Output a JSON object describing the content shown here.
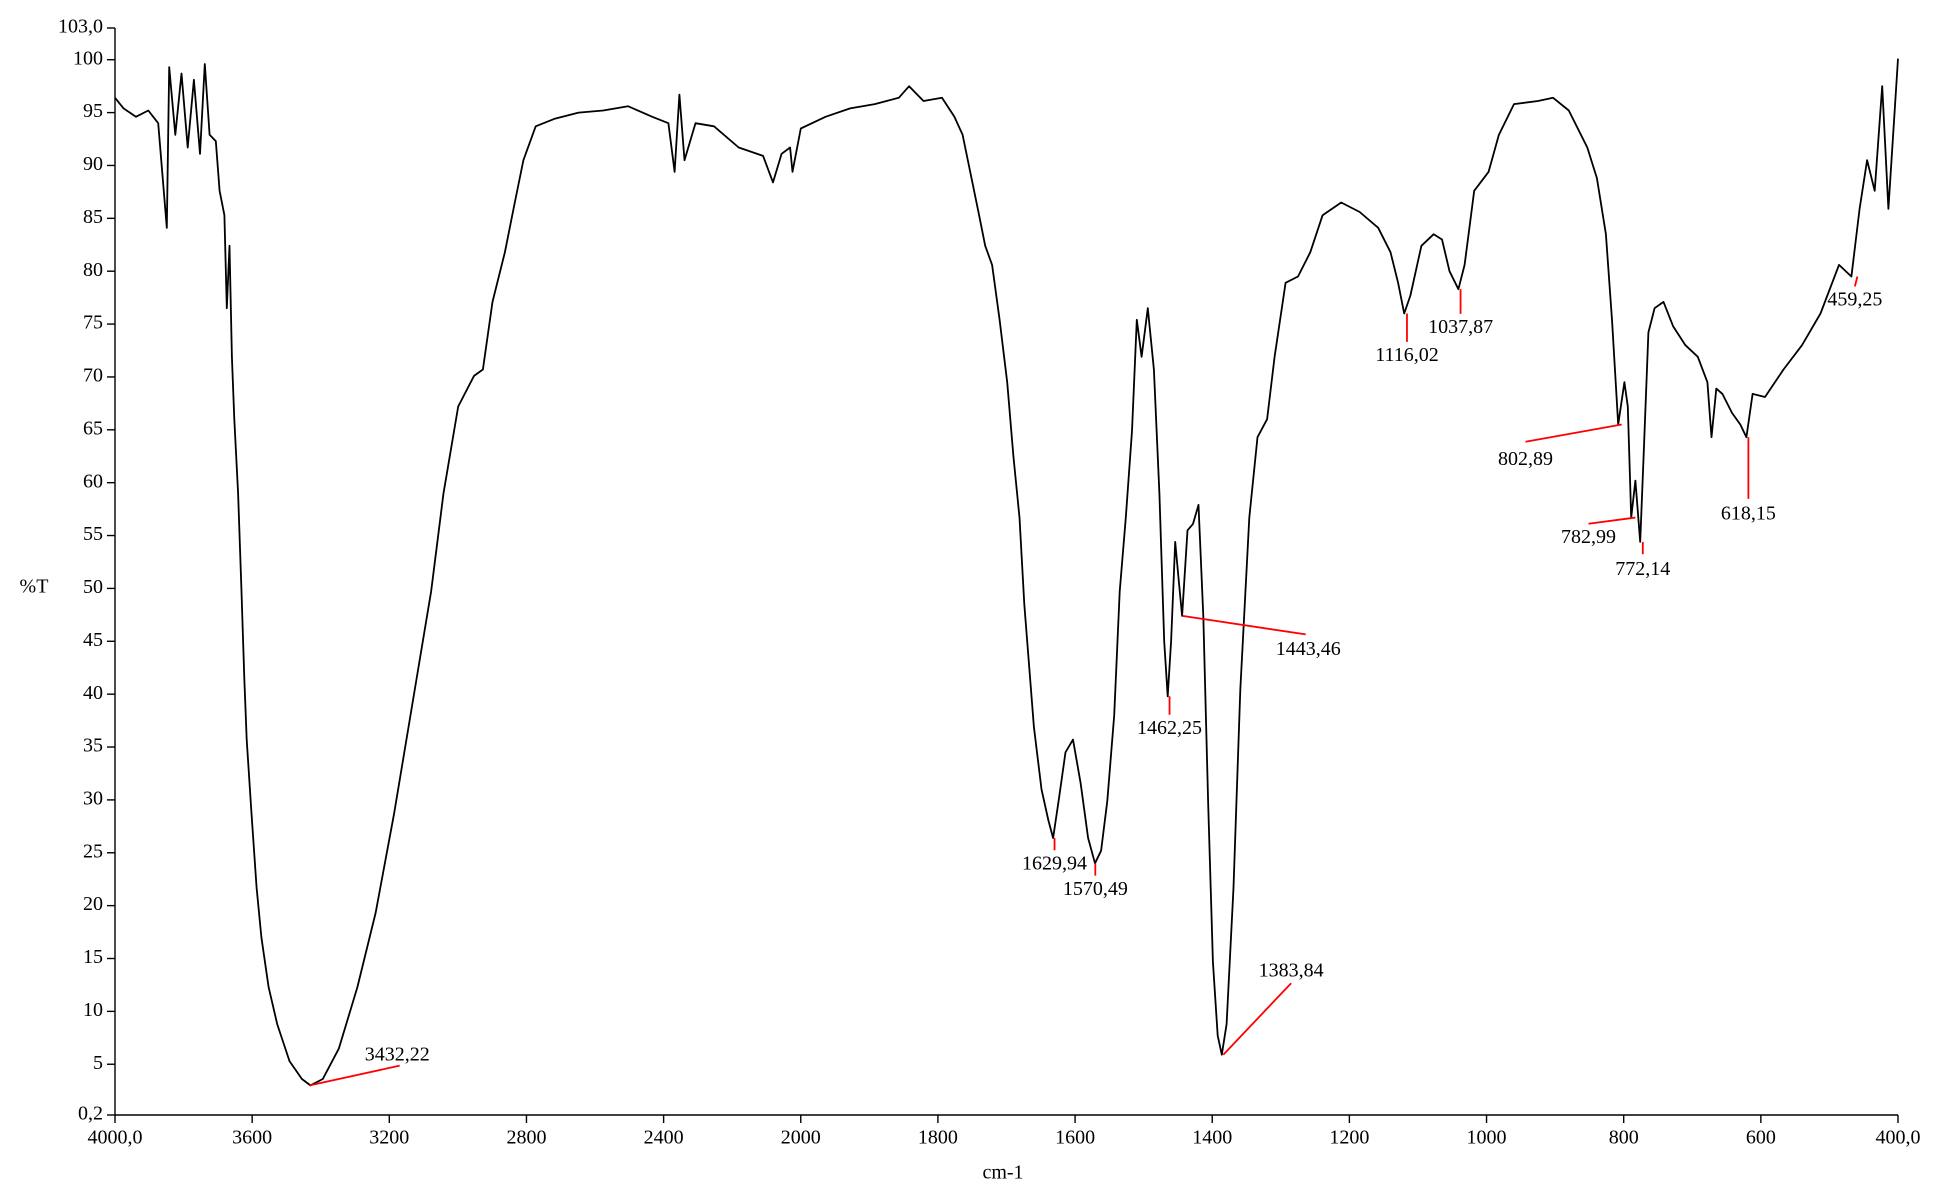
{
  "chart_data": {
    "type": "line",
    "xlabel": "cm-1",
    "ylabel": "%T",
    "color": "#000000",
    "annotation_color": "#ff0000",
    "xlim": [
      4000,
      400
    ],
    "ylim": [
      0.2,
      103
    ],
    "xticks": [
      {
        "value": 4000,
        "label": "4000,0"
      },
      3600,
      3200,
      2800,
      2400,
      2000,
      1800,
      1600,
      1400,
      1200,
      1000,
      800,
      600,
      {
        "value": 400,
        "label": "400,0"
      }
    ],
    "yticks": [
      {
        "value": 0.2,
        "label": "0,2"
      },
      5,
      10,
      15,
      20,
      25,
      30,
      35,
      40,
      45,
      50,
      55,
      60,
      65,
      70,
      75,
      80,
      85,
      90,
      95,
      100,
      {
        "value": 103,
        "label": "103,0"
      }
    ],
    "x": [
      4000,
      3975,
      3939,
      3903,
      3874,
      3849,
      3842,
      3824,
      3806,
      3788,
      3770,
      3752,
      3738,
      3724,
      3706,
      3695,
      3681,
      3674,
      3666,
      3659,
      3652,
      3641,
      3631,
      3623,
      3616,
      3602,
      3587,
      3573,
      3552,
      3527,
      3491,
      3455,
      3430,
      3394,
      3347,
      3293,
      3240,
      3186,
      3132,
      3078,
      3042,
      2999,
      2953,
      2927,
      2899,
      2863,
      2834,
      2809,
      2773,
      2719,
      2648,
      2576,
      2504,
      2433,
      2386,
      2368,
      2354,
      2339,
      2307,
      2253,
      2181,
      2110,
      2081,
      2056,
      2031,
      2024,
      2000,
      1964,
      1928,
      1892,
      1857,
      1842,
      1821,
      1794,
      1776,
      1764,
      1753,
      1740,
      1731,
      1721,
      1710,
      1699,
      1690,
      1681,
      1674,
      1667,
      1660,
      1649,
      1639,
      1632,
      1624,
      1614,
      1603,
      1592,
      1581,
      1571,
      1562,
      1553,
      1543,
      1535,
      1526,
      1517,
      1510,
      1503,
      1494,
      1485,
      1477,
      1470,
      1465,
      1460,
      1454,
      1449,
      1444,
      1436,
      1428,
      1420,
      1413,
      1406,
      1399,
      1392,
      1386,
      1379,
      1369,
      1359,
      1346,
      1334,
      1320,
      1309,
      1293,
      1275,
      1257,
      1239,
      1212,
      1185,
      1158,
      1140,
      1129,
      1120,
      1111,
      1095,
      1077,
      1065,
      1054,
      1041,
      1032,
      1018,
      997,
      982,
      960,
      925,
      903,
      880,
      853,
      839,
      826,
      817,
      808,
      799,
      794,
      789,
      783,
      776,
      771,
      764,
      755,
      742,
      728,
      710,
      692,
      678,
      672,
      665,
      656,
      642,
      630,
      621,
      612,
      594,
      567,
      540,
      513,
      486,
      468,
      456,
      445,
      434,
      423,
      414,
      400
    ],
    "values": [
      96.4,
      95.4,
      94.6,
      95.2,
      94.0,
      84.1,
      99.3,
      92.9,
      98.7,
      91.7,
      98.1,
      91.1,
      99.6,
      92.9,
      92.3,
      87.6,
      85.3,
      76.5,
      82.4,
      71.9,
      66.0,
      59.0,
      49.7,
      41.5,
      35.7,
      28.7,
      21.7,
      17.0,
      12.3,
      8.8,
      5.3,
      3.6,
      3.0,
      3.6,
      6.5,
      12.3,
      19.3,
      28.7,
      39.2,
      49.7,
      59.0,
      67.2,
      70.1,
      70.7,
      77.1,
      81.8,
      86.5,
      90.5,
      93.7,
      94.4,
      95.0,
      95.2,
      95.6,
      94.6,
      94.0,
      89.4,
      96.7,
      90.5,
      94.0,
      93.7,
      91.7,
      90.9,
      88.4,
      91.1,
      91.7,
      89.4,
      93.5,
      94.6,
      95.4,
      95.8,
      96.4,
      97.5,
      96.1,
      96.4,
      94.6,
      92.9,
      89.4,
      85.3,
      82.4,
      80.6,
      75.4,
      69.5,
      62.5,
      56.7,
      48.5,
      42.7,
      36.9,
      31.0,
      28.1,
      26.4,
      29.9,
      34.5,
      35.7,
      31.6,
      26.4,
      24.0,
      25.2,
      29.9,
      38.0,
      49.7,
      56.7,
      64.9,
      75.4,
      71.9,
      76.5,
      70.7,
      59.0,
      45.0,
      39.8,
      45.0,
      54.4,
      50.9,
      47.4,
      55.5,
      56.1,
      57.9,
      47.4,
      29.9,
      14.7,
      7.7,
      5.9,
      8.8,
      21.7,
      40.4,
      56.7,
      64.3,
      66.0,
      71.9,
      78.9,
      79.5,
      81.8,
      85.3,
      86.5,
      85.6,
      84.1,
      81.8,
      78.9,
      76.0,
      77.7,
      82.4,
      83.5,
      83.0,
      80.0,
      78.3,
      80.6,
      87.6,
      89.4,
      92.9,
      95.8,
      96.1,
      96.4,
      95.2,
      91.7,
      88.8,
      83.5,
      75.4,
      65.5,
      69.5,
      67.2,
      56.7,
      60.2,
      54.4,
      62.5,
      74.2,
      76.5,
      77.1,
      74.8,
      73.0,
      71.9,
      69.5,
      64.3,
      68.9,
      68.4,
      66.6,
      65.5,
      64.3,
      68.4,
      68.1,
      70.7,
      73.0,
      76.0,
      80.6,
      79.5,
      85.9,
      90.5,
      87.6,
      97.5,
      85.9,
      100.1
    ],
    "annotations": [
      {
        "text": "3432,22",
        "x": 3432.22,
        "y": 3.0
      },
      {
        "text": "1629,94",
        "x": 1629.94,
        "y": 26.4
      },
      {
        "text": "1570,49",
        "x": 1570.49,
        "y": 24.0
      },
      {
        "text": "1462,25",
        "x": 1462.25,
        "y": 39.8
      },
      {
        "text": "1443,46",
        "x": 1443.46,
        "y": 47.4
      },
      {
        "text": "1383,84",
        "x": 1383.84,
        "y": 5.9
      },
      {
        "text": "1116,02",
        "x": 1116.02,
        "y": 76.0
      },
      {
        "text": "1037,87",
        "x": 1037.87,
        "y": 78.3
      },
      {
        "text": "802,89",
        "x": 802.89,
        "y": 65.5
      },
      {
        "text": "782,99",
        "x": 782.99,
        "y": 56.7
      },
      {
        "text": "772,14",
        "x": 772.14,
        "y": 54.4
      },
      {
        "text": "618,15",
        "x": 618.15,
        "y": 64.3
      },
      {
        "text": "459,25",
        "x": 459.25,
        "y": 79.5
      }
    ]
  }
}
